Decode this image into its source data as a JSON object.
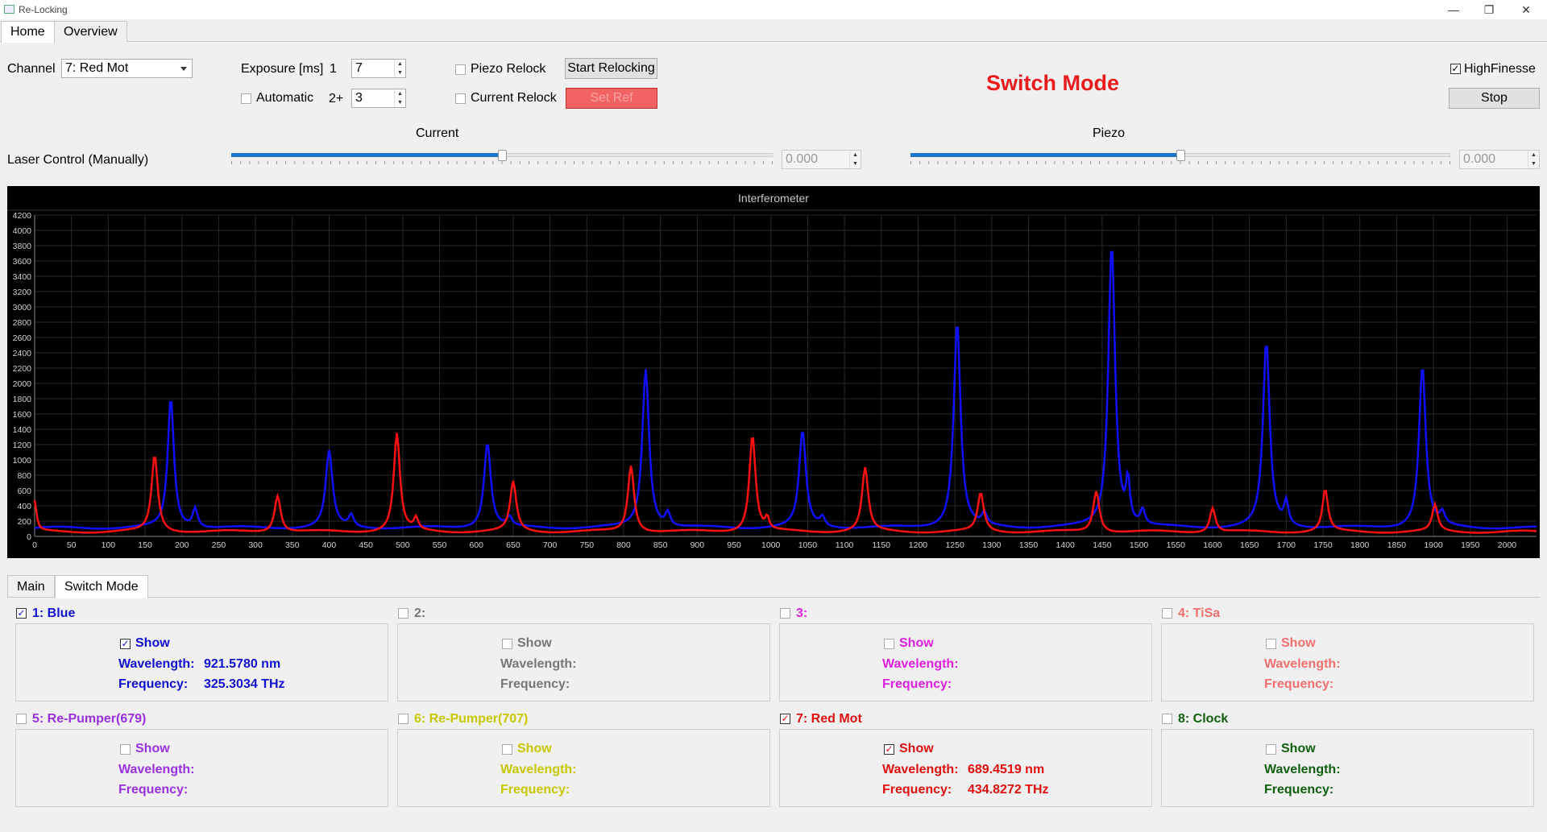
{
  "window": {
    "title": "Re-Locking",
    "minimize": "—",
    "restore": "❐",
    "close": "✕"
  },
  "top_tabs": [
    {
      "label": "Home",
      "active": true
    },
    {
      "label": "Overview",
      "active": false
    }
  ],
  "controls": {
    "channel_label": "Channel",
    "channel_value": "7: Red Mot",
    "exposure_label": "Exposure [ms]",
    "exposure1_label": "1",
    "exposure1_value": "7",
    "automatic_label": "Automatic",
    "exposure2_label": "2+",
    "exposure2_value": "3",
    "piezo_relock_label": "Piezo Relock",
    "current_relock_label": "Current Relock",
    "start_relocking_label": "Start Relocking",
    "set_ref_label": "Set Ref",
    "mode_title": "Switch Mode",
    "highfinesse_label": "HighFinesse",
    "highfinesse_checked": true,
    "stop_label": "Stop"
  },
  "laser_control": {
    "label": "Laser Control (Manually)",
    "current_label": "Current",
    "current_value": "0.000",
    "current_slider_fraction": 0.5,
    "piezo_label": "Piezo",
    "piezo_value": "0.000",
    "piezo_slider_fraction": 0.5
  },
  "chart_data": {
    "type": "line",
    "title": "Interferometer",
    "xlim": [
      0,
      2040
    ],
    "ylim": [
      0,
      4200
    ],
    "x_ticks": [
      0,
      50,
      100,
      150,
      200,
      250,
      300,
      350,
      400,
      450,
      500,
      550,
      600,
      650,
      700,
      750,
      800,
      850,
      900,
      950,
      1000,
      1050,
      1100,
      1150,
      1200,
      1250,
      1300,
      1350,
      1400,
      1450,
      1500,
      1550,
      1600,
      1650,
      1700,
      1750,
      1800,
      1850,
      1900,
      1950,
      2000
    ],
    "y_ticks": [
      0,
      200,
      400,
      600,
      800,
      1000,
      1200,
      1400,
      1600,
      1800,
      2000,
      2200,
      2400,
      2600,
      2800,
      3000,
      3200,
      3400,
      3600,
      3800,
      4000,
      4200
    ],
    "grid": true,
    "series": [
      {
        "color": "#1010ff",
        "baseline": 110,
        "peaks": [
          [
            185,
            1700,
            10
          ],
          [
            218,
            250,
            8
          ],
          [
            400,
            1000,
            11
          ],
          [
            430,
            150,
            8
          ],
          [
            615,
            1120,
            11
          ],
          [
            645,
            120,
            8
          ],
          [
            830,
            2080,
            11
          ],
          [
            860,
            180,
            8
          ],
          [
            1043,
            1260,
            11
          ],
          [
            1070,
            120,
            8
          ],
          [
            1253,
            2700,
            11
          ],
          [
            1290,
            150,
            8
          ],
          [
            1463,
            3720,
            11
          ],
          [
            1485,
            550,
            6
          ],
          [
            1505,
            200,
            7
          ],
          [
            1673,
            2420,
            11
          ],
          [
            1700,
            300,
            7
          ],
          [
            1885,
            2120,
            11
          ],
          [
            1912,
            150,
            8
          ]
        ]
      },
      {
        "color": "#ff1010",
        "baseline": 60,
        "peaks": [
          [
            163,
            1000,
            10
          ],
          [
            0,
            400,
            6
          ],
          [
            330,
            480,
            10
          ],
          [
            492,
            1280,
            10
          ],
          [
            518,
            150,
            7
          ],
          [
            650,
            650,
            10
          ],
          [
            810,
            870,
            10
          ],
          [
            975,
            1270,
            10
          ],
          [
            995,
            150,
            6
          ],
          [
            1128,
            830,
            10
          ],
          [
            1285,
            500,
            10
          ],
          [
            1442,
            540,
            10
          ],
          [
            1600,
            320,
            9
          ],
          [
            1753,
            550,
            9
          ],
          [
            1902,
            350,
            9
          ]
        ]
      }
    ]
  },
  "bottom_tabs": [
    {
      "label": "Main",
      "active": false
    },
    {
      "label": "Switch Mode",
      "active": true
    }
  ],
  "channels": [
    {
      "name": "1: Blue",
      "color": "#1010d0",
      "checked": true,
      "show_label": "Show",
      "show_checked": true,
      "wavelength_label": "Wavelength:",
      "wavelength_value": "921.5780 nm",
      "frequency_label": "Frequency:",
      "frequency_value": "325.3034 THz",
      "dim": false
    },
    {
      "name": "2:",
      "color": "#666666",
      "checked": false,
      "show_label": "Show",
      "show_checked": false,
      "wavelength_label": "Wavelength:",
      "wavelength_value": "",
      "frequency_label": "Frequency:",
      "frequency_value": "",
      "dim": true
    },
    {
      "name": "3:",
      "color": "#e020e0",
      "checked": false,
      "show_label": "Show",
      "show_checked": false,
      "wavelength_label": "Wavelength:",
      "wavelength_value": "",
      "frequency_label": "Frequency:",
      "frequency_value": "",
      "dim": false
    },
    {
      "name": "4: TiSa",
      "color": "#f07070",
      "checked": false,
      "show_label": "Show",
      "show_checked": false,
      "wavelength_label": "Wavelength:",
      "wavelength_value": "",
      "frequency_label": "Frequency:",
      "frequency_value": "",
      "dim": false
    },
    {
      "name": "5: Re-Pumper(679)",
      "color": "#9a30e0",
      "checked": false,
      "show_label": "Show",
      "show_checked": false,
      "wavelength_label": "Wavelength:",
      "wavelength_value": "",
      "frequency_label": "Frequency:",
      "frequency_value": "",
      "dim": false
    },
    {
      "name": "6: Re-Pumper(707)",
      "color": "#c8c800",
      "checked": false,
      "show_label": "Show",
      "show_checked": false,
      "wavelength_label": "Wavelength:",
      "wavelength_value": "",
      "frequency_label": "Frequency:",
      "frequency_value": "",
      "dim": false
    },
    {
      "name": "7: Red Mot",
      "color": "#e01010",
      "checked": true,
      "show_label": "Show",
      "show_checked": true,
      "wavelength_label": "Wavelength:",
      "wavelength_value": "689.4519 nm",
      "frequency_label": "Frequency:",
      "frequency_value": "434.8272 THz",
      "dim": false
    },
    {
      "name": "8: Clock",
      "color": "#106010",
      "checked": false,
      "show_label": "Show",
      "show_checked": false,
      "wavelength_label": "Wavelength:",
      "wavelength_value": "",
      "frequency_label": "Frequency:",
      "frequency_value": "",
      "dim": false
    }
  ]
}
